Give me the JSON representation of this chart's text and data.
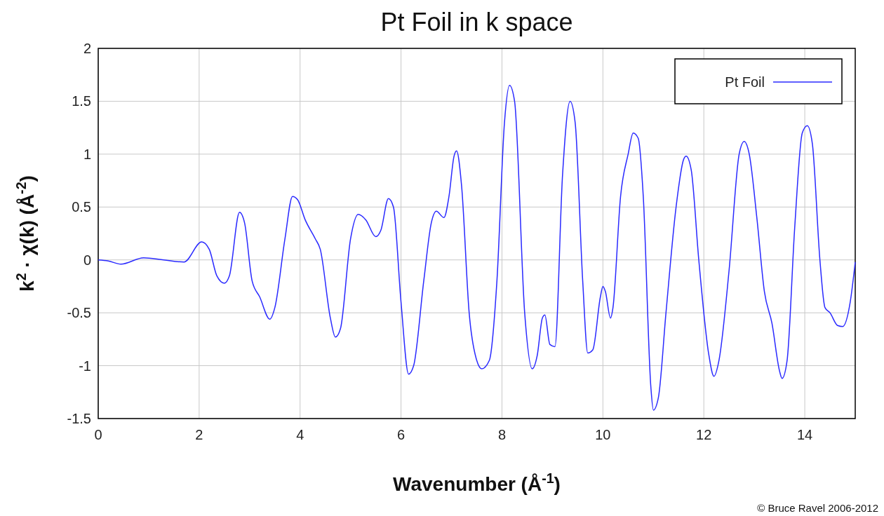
{
  "chart_data": {
    "type": "line",
    "title": "Pt Foil in k space",
    "xlabel": "Wavenumber    (Å$^{-1}$)",
    "ylabel": "k$^{2}$ · χ(k)    (Å$^{-2}$)",
    "xlim": [
      0,
      15
    ],
    "xticks": [
      0,
      2,
      4,
      6,
      8,
      10,
      12,
      14
    ],
    "ylim": [
      -1.5,
      2
    ],
    "yticks": [
      -1.5,
      -1,
      -0.5,
      0,
      0.5,
      1,
      1.5,
      2
    ],
    "grid": true,
    "legend": "top right",
    "marker": "none",
    "line_style": "solid",
    "annotations": [
      "© Bruce Ravel 2006-2012"
    ],
    "series": [
      {
        "name": "Pt Foil",
        "color": "#2a2aff",
        "x": [
          0,
          0.2,
          0.45,
          0.9,
          1.3,
          1.7,
          2.05,
          2.2,
          2.35,
          2.5,
          2.6,
          2.8,
          2.9,
          3.05,
          3.2,
          3.4,
          3.5,
          3.7,
          3.85,
          3.95,
          4.1,
          4.3,
          4.4,
          4.6,
          4.7,
          4.8,
          5.0,
          5.15,
          5.3,
          5.5,
          5.6,
          5.75,
          5.85,
          6.0,
          6.15,
          6.25,
          6.45,
          6.6,
          6.7,
          6.85,
          6.95,
          7.05,
          7.1,
          7.2,
          7.35,
          7.5,
          7.6,
          7.75,
          7.9,
          8.05,
          8.15,
          8.25,
          8.45,
          8.6,
          8.7,
          8.8,
          8.85,
          8.95,
          9.05,
          9.2,
          9.35,
          9.45,
          9.6,
          9.7,
          9.8,
          9.95,
          10.0,
          10.05,
          10.15,
          10.2,
          10.35,
          10.5,
          10.6,
          10.7,
          10.8,
          10.95,
          11.0,
          11.1,
          11.25,
          11.45,
          11.6,
          11.65,
          11.75,
          11.9,
          12.1,
          12.2,
          12.3,
          12.5,
          12.7,
          12.8,
          12.9,
          13.05,
          13.2,
          13.35,
          13.5,
          13.55,
          13.65,
          13.8,
          13.95,
          14.05,
          14.15,
          14.3,
          14.4,
          14.5,
          14.65,
          14.75,
          14.9,
          15.0
        ],
        "values": [
          0,
          -0.01,
          -0.04,
          0.02,
          0,
          -0.02,
          0.17,
          0.1,
          -0.15,
          -0.22,
          -0.15,
          0.45,
          0.35,
          -0.2,
          -0.35,
          -0.56,
          -0.45,
          0.2,
          0.6,
          0.57,
          0.38,
          0.2,
          0.1,
          -0.55,
          -0.73,
          -0.65,
          0.2,
          0.43,
          0.38,
          0.22,
          0.28,
          0.58,
          0.5,
          -0.4,
          -1.08,
          -1,
          -0.2,
          0.35,
          0.46,
          0.4,
          0.6,
          0.98,
          1.03,
          0.7,
          -0.5,
          -0.95,
          -1.03,
          -0.95,
          -0.2,
          1.3,
          1.65,
          1.5,
          -0.5,
          -1.03,
          -0.9,
          -0.55,
          -0.52,
          -0.8,
          -0.82,
          0.8,
          1.5,
          1.3,
          -0.2,
          -0.88,
          -0.85,
          -0.35,
          -0.25,
          -0.3,
          -0.55,
          -0.45,
          0.6,
          1,
          1.2,
          1.15,
          0.6,
          -1.2,
          -1.42,
          -1.3,
          -0.5,
          0.5,
          0.95,
          0.98,
          0.85,
          0,
          -0.9,
          -1.1,
          -0.95,
          -0.1,
          1,
          1.12,
          1,
          0.4,
          -0.3,
          -0.6,
          -1.05,
          -1.12,
          -0.95,
          0.3,
          1.2,
          1.27,
          1.1,
          0,
          -0.45,
          -0.5,
          -0.62,
          -0.63,
          -0.4,
          -0.02
        ]
      }
    ]
  }
}
